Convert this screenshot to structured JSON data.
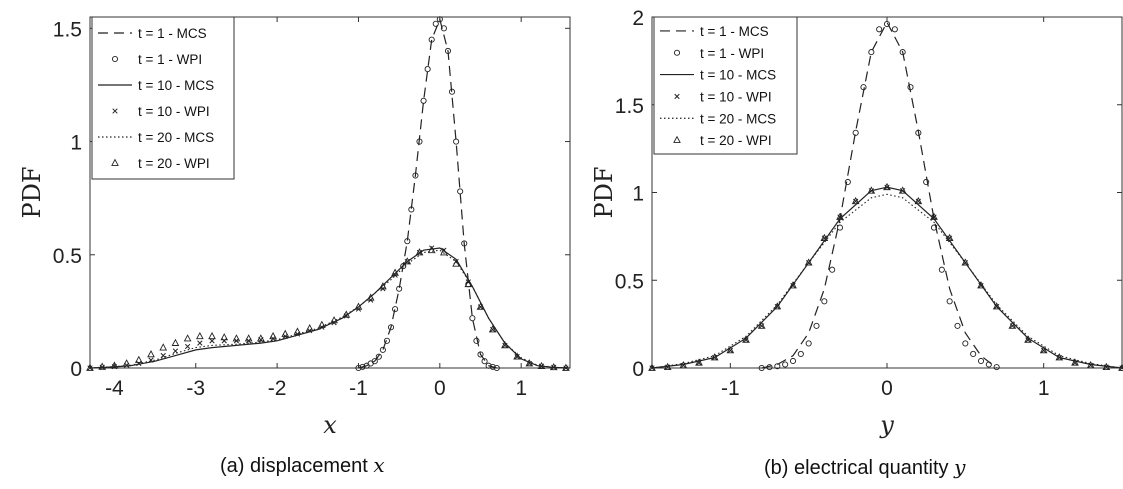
{
  "chart_data": [
    {
      "type": "line",
      "caption_text": "(a) displacement ",
      "caption_var": "x",
      "xlabel": "x",
      "ylabel": "PDF",
      "xlim": [
        -4.3,
        1.6
      ],
      "ylim": [
        0,
        1.55
      ],
      "xticks": [
        -4,
        -3,
        -2,
        -1,
        0,
        1
      ],
      "xtick_labels": [
        "-4",
        "-3",
        "-2",
        "-1",
        "0",
        "1"
      ],
      "yticks": [
        0,
        0.5,
        1,
        1.5
      ],
      "ytick_labels": [
        "0",
        "0.5",
        "1",
        "1.5"
      ],
      "grid": false,
      "legend_position": "top-left",
      "series": [
        {
          "name": "t = 1 - MCS",
          "style": "dashed",
          "x": [
            -1,
            -0.9,
            -0.8,
            -0.7,
            -0.6,
            -0.5,
            -0.4,
            -0.3,
            -0.2,
            -0.1,
            0,
            0.1,
            0.2,
            0.3,
            0.4,
            0.5,
            0.6,
            0.7
          ],
          "y": [
            0,
            0.01,
            0.03,
            0.08,
            0.18,
            0.35,
            0.56,
            0.85,
            1.18,
            1.45,
            1.54,
            1.4,
            1.0,
            0.55,
            0.22,
            0.06,
            0.01,
            0
          ]
        },
        {
          "name": "t = 1 - WPI",
          "style": "circle",
          "x": [
            -1.0,
            -0.95,
            -0.9,
            -0.85,
            -0.8,
            -0.75,
            -0.7,
            -0.65,
            -0.6,
            -0.55,
            -0.5,
            -0.45,
            -0.4,
            -0.35,
            -0.3,
            -0.25,
            -0.2,
            -0.15,
            -0.1,
            -0.05,
            0,
            0.05,
            0.1,
            0.15,
            0.2,
            0.25,
            0.3,
            0.35,
            0.4,
            0.45,
            0.5,
            0.55,
            0.6,
            0.65,
            0.7
          ],
          "y": [
            0,
            0.005,
            0.01,
            0.02,
            0.03,
            0.05,
            0.08,
            0.12,
            0.18,
            0.26,
            0.35,
            0.45,
            0.56,
            0.7,
            0.85,
            1.0,
            1.18,
            1.32,
            1.45,
            1.52,
            1.54,
            1.5,
            1.4,
            1.22,
            1.0,
            0.78,
            0.55,
            0.37,
            0.22,
            0.12,
            0.06,
            0.03,
            0.01,
            0.005,
            0
          ]
        },
        {
          "name": "t = 10 - MCS",
          "style": "solid",
          "x": [
            -4.3,
            -4.0,
            -3.8,
            -3.5,
            -3.2,
            -3.0,
            -2.8,
            -2.5,
            -2.2,
            -2.0,
            -1.8,
            -1.5,
            -1.2,
            -1.0,
            -0.8,
            -0.6,
            -0.4,
            -0.2,
            0,
            0.2,
            0.4,
            0.6,
            0.8,
            1.0,
            1.2,
            1.4,
            1.6
          ],
          "y": [
            0,
            0.005,
            0.01,
            0.03,
            0.06,
            0.08,
            0.09,
            0.1,
            0.11,
            0.12,
            0.14,
            0.17,
            0.22,
            0.27,
            0.33,
            0.4,
            0.47,
            0.52,
            0.53,
            0.48,
            0.36,
            0.22,
            0.11,
            0.04,
            0.01,
            0.003,
            0
          ]
        },
        {
          "name": "t = 10 - WPI",
          "style": "x",
          "x": [
            -4.3,
            -4.15,
            -4.0,
            -3.85,
            -3.7,
            -3.55,
            -3.4,
            -3.25,
            -3.1,
            -2.95,
            -2.8,
            -2.65,
            -2.5,
            -2.35,
            -2.2,
            -2.05,
            -1.9,
            -1.75,
            -1.6,
            -1.45,
            -1.3,
            -1.15,
            -1.0,
            -0.85,
            -0.7,
            -0.55,
            -0.4,
            -0.25,
            -0.1,
            0.05,
            0.2,
            0.35,
            0.5,
            0.65,
            0.8,
            0.95,
            1.1,
            1.25,
            1.4,
            1.55
          ],
          "y": [
            0,
            0.003,
            0.006,
            0.012,
            0.02,
            0.035,
            0.055,
            0.075,
            0.095,
            0.11,
            0.12,
            0.12,
            0.12,
            0.12,
            0.125,
            0.13,
            0.14,
            0.15,
            0.165,
            0.18,
            0.2,
            0.23,
            0.26,
            0.3,
            0.35,
            0.41,
            0.47,
            0.51,
            0.53,
            0.52,
            0.47,
            0.38,
            0.27,
            0.17,
            0.1,
            0.05,
            0.02,
            0.008,
            0.003,
            0
          ]
        },
        {
          "name": "t = 20 - MCS",
          "style": "dotted",
          "x": [
            -4.3,
            -4.0,
            -3.8,
            -3.5,
            -3.2,
            -3.0,
            -2.8,
            -2.5,
            -2.2,
            -2.0,
            -1.8,
            -1.5,
            -1.2,
            -1.0,
            -0.8,
            -0.6,
            -0.4,
            -0.2,
            0,
            0.2,
            0.4,
            0.6,
            0.8,
            1.0,
            1.2,
            1.4,
            1.6
          ],
          "y": [
            0,
            0.006,
            0.012,
            0.035,
            0.07,
            0.09,
            0.1,
            0.105,
            0.115,
            0.125,
            0.145,
            0.175,
            0.225,
            0.27,
            0.33,
            0.39,
            0.46,
            0.51,
            0.52,
            0.47,
            0.36,
            0.22,
            0.11,
            0.045,
            0.012,
            0.003,
            0
          ]
        },
        {
          "name": "t = 20 - WPI",
          "style": "triangle",
          "x": [
            -4.3,
            -4.15,
            -4.0,
            -3.85,
            -3.7,
            -3.55,
            -3.4,
            -3.25,
            -3.1,
            -2.95,
            -2.8,
            -2.65,
            -2.5,
            -2.35,
            -2.2,
            -2.05,
            -1.9,
            -1.75,
            -1.6,
            -1.45,
            -1.3,
            -1.15,
            -1.0,
            -0.85,
            -0.7,
            -0.55,
            -0.4,
            -0.25,
            -0.1,
            0.05,
            0.2,
            0.35,
            0.5,
            0.65,
            0.8,
            0.95,
            1.1,
            1.25,
            1.4,
            1.55
          ],
          "y": [
            0,
            0.005,
            0.01,
            0.02,
            0.035,
            0.06,
            0.09,
            0.11,
            0.13,
            0.14,
            0.14,
            0.135,
            0.13,
            0.13,
            0.13,
            0.14,
            0.15,
            0.16,
            0.175,
            0.19,
            0.21,
            0.235,
            0.27,
            0.31,
            0.36,
            0.42,
            0.47,
            0.51,
            0.52,
            0.51,
            0.46,
            0.37,
            0.27,
            0.17,
            0.1,
            0.05,
            0.02,
            0.008,
            0.003,
            0
          ]
        }
      ]
    },
    {
      "type": "line",
      "caption_text": "(b) electrical quantity ",
      "caption_var": "y",
      "xlabel": "y",
      "ylabel": "PDF",
      "xlim": [
        -1.5,
        1.5
      ],
      "ylim": [
        0,
        2
      ],
      "xticks": [
        -1,
        0,
        1
      ],
      "xtick_labels": [
        "-1",
        "0",
        "1"
      ],
      "yticks": [
        0,
        0.5,
        1,
        1.5,
        2
      ],
      "ytick_labels": [
        "0",
        "0.5",
        "1",
        "1.5",
        "2"
      ],
      "grid": false,
      "legend_position": "top-left",
      "series": [
        {
          "name": "t = 1 - MCS",
          "style": "dashed",
          "x": [
            -0.8,
            -0.7,
            -0.6,
            -0.5,
            -0.4,
            -0.3,
            -0.2,
            -0.1,
            0,
            0.1,
            0.2,
            0.3,
            0.4,
            0.5,
            0.6,
            0.7
          ],
          "y": [
            0,
            0.02,
            0.07,
            0.2,
            0.45,
            0.85,
            1.35,
            1.8,
            1.97,
            1.8,
            1.35,
            0.85,
            0.45,
            0.2,
            0.07,
            0
          ],
          "note": ""
        },
        {
          "name": "t = 1 - WPI",
          "style": "circle",
          "x": [
            -0.8,
            -0.75,
            -0.7,
            -0.65,
            -0.6,
            -0.55,
            -0.5,
            -0.45,
            -0.4,
            -0.35,
            -0.3,
            -0.25,
            -0.2,
            -0.15,
            -0.1,
            -0.05,
            0,
            0.05,
            0.1,
            0.15,
            0.2,
            0.25,
            0.3,
            0.35,
            0.4,
            0.45,
            0.5,
            0.55,
            0.6,
            0.65,
            0.7
          ],
          "y": [
            0,
            0.005,
            0.01,
            0.02,
            0.04,
            0.08,
            0.14,
            0.24,
            0.38,
            0.56,
            0.8,
            1.06,
            1.34,
            1.6,
            1.8,
            1.93,
            1.96,
            1.93,
            1.8,
            1.6,
            1.34,
            1.06,
            0.8,
            0.56,
            0.38,
            0.24,
            0.14,
            0.08,
            0.04,
            0.02,
            0.005
          ]
        },
        {
          "name": "t = 10 - MCS",
          "style": "solid",
          "x": [
            -1.5,
            -1.3,
            -1.1,
            -0.9,
            -0.7,
            -0.5,
            -0.3,
            -0.1,
            0,
            0.1,
            0.3,
            0.5,
            0.7,
            0.9,
            1.1,
            1.3,
            1.5
          ],
          "y": [
            0,
            0.02,
            0.06,
            0.17,
            0.35,
            0.6,
            0.85,
            1.01,
            1.03,
            1.01,
            0.85,
            0.6,
            0.35,
            0.17,
            0.06,
            0.02,
            0
          ]
        },
        {
          "name": "t = 10 - WPI",
          "style": "x",
          "x": [
            -1.5,
            -1.4,
            -1.3,
            -1.2,
            -1.1,
            -1.0,
            -0.9,
            -0.8,
            -0.7,
            -0.6,
            -0.5,
            -0.4,
            -0.3,
            -0.2,
            -0.1,
            0,
            0.1,
            0.2,
            0.3,
            0.4,
            0.5,
            0.6,
            0.7,
            0.8,
            0.9,
            1.0,
            1.1,
            1.2,
            1.3,
            1.4,
            1.5
          ],
          "y": [
            0,
            0.005,
            0.015,
            0.03,
            0.06,
            0.1,
            0.16,
            0.24,
            0.35,
            0.47,
            0.6,
            0.74,
            0.86,
            0.95,
            1.01,
            1.03,
            1.01,
            0.95,
            0.86,
            0.74,
            0.6,
            0.47,
            0.35,
            0.24,
            0.16,
            0.1,
            0.06,
            0.03,
            0.015,
            0.005,
            0
          ]
        },
        {
          "name": "t = 20 - MCS",
          "style": "dotted",
          "x": [
            -1.5,
            -1.3,
            -1.1,
            -0.9,
            -0.7,
            -0.5,
            -0.3,
            -0.1,
            0,
            0.1,
            0.3,
            0.5,
            0.7,
            0.9,
            1.1,
            1.3,
            1.5
          ],
          "y": [
            0,
            0.025,
            0.07,
            0.18,
            0.36,
            0.6,
            0.83,
            0.97,
            0.99,
            0.97,
            0.83,
            0.6,
            0.36,
            0.18,
            0.07,
            0.025,
            0
          ]
        },
        {
          "name": "t = 20 - WPI",
          "style": "triangle",
          "x": [
            -1.5,
            -1.4,
            -1.3,
            -1.2,
            -1.1,
            -1.0,
            -0.9,
            -0.8,
            -0.7,
            -0.6,
            -0.5,
            -0.4,
            -0.3,
            -0.2,
            -0.1,
            0,
            0.1,
            0.2,
            0.3,
            0.4,
            0.5,
            0.6,
            0.7,
            0.8,
            0.9,
            1.0,
            1.1,
            1.2,
            1.3,
            1.4,
            1.5
          ],
          "y": [
            0,
            0.005,
            0.015,
            0.03,
            0.06,
            0.1,
            0.16,
            0.24,
            0.35,
            0.47,
            0.6,
            0.74,
            0.86,
            0.95,
            1.01,
            1.03,
            1.01,
            0.95,
            0.86,
            0.74,
            0.6,
            0.47,
            0.35,
            0.24,
            0.16,
            0.1,
            0.06,
            0.03,
            0.015,
            0.005,
            0
          ]
        }
      ]
    }
  ]
}
